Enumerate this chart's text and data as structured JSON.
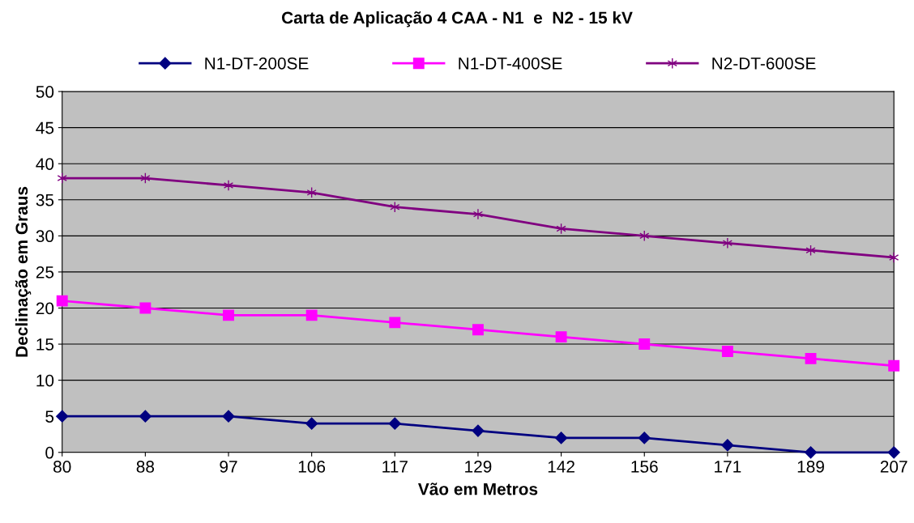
{
  "chart_data": {
    "type": "line",
    "title": "Carta de Aplicação 4 CAA - N1  e  N2 - 15 kV",
    "xlabel": "Vão em Metros",
    "ylabel": "Declinação em Graus",
    "categories": [
      "80",
      "88",
      "97",
      "106",
      "117",
      "129",
      "142",
      "156",
      "171",
      "189",
      "207"
    ],
    "series": [
      {
        "name": "N1-DT-200SE",
        "color": "#000080",
        "marker": "diamond",
        "values": [
          5,
          5,
          5,
          4,
          4,
          3,
          2,
          2,
          1,
          0,
          0
        ]
      },
      {
        "name": "N1-DT-400SE",
        "color": "#ff00ff",
        "marker": "square",
        "values": [
          21,
          20,
          19,
          19,
          18,
          17,
          16,
          15,
          14,
          13,
          12
        ]
      },
      {
        "name": "N2-DT-600SE",
        "color": "#800080",
        "marker": "cross",
        "values": [
          38,
          38,
          37,
          36,
          34,
          33,
          31,
          30,
          29,
          28,
          27
        ]
      }
    ],
    "ylim": [
      0,
      50
    ],
    "yticks": [
      0,
      5,
      10,
      15,
      20,
      25,
      30,
      35,
      40,
      45,
      50
    ],
    "grid": "y",
    "legend": "top"
  }
}
